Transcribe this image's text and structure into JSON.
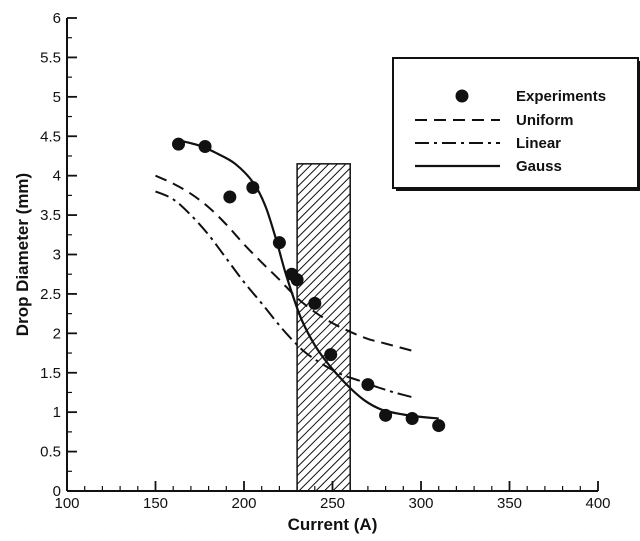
{
  "chart_data": {
    "type": "line",
    "title": "",
    "xlabel": "Current (A)",
    "ylabel": "Drop Diameter (mm)",
    "xlim": [
      100,
      400
    ],
    "ylim": [
      0,
      6
    ],
    "xticks": [
      100,
      150,
      200,
      250,
      300,
      350,
      400
    ],
    "yticks": [
      0,
      0.5,
      1,
      1.5,
      2,
      2.5,
      3,
      3.5,
      4,
      4.5,
      5,
      5.5,
      6
    ],
    "x_tick_labels": [
      "100",
      "150",
      "200",
      "250",
      "300",
      "350",
      "400"
    ],
    "y_tick_labels": [
      "0",
      "0.5",
      "1",
      "1.5",
      "2",
      "2.5",
      "3",
      "3.5",
      "4",
      "4.5",
      "5",
      "5.5",
      "6"
    ],
    "legend_position": "top-right",
    "shaded_region": {
      "x_range": [
        230,
        260
      ],
      "y_range": [
        0,
        4.15
      ],
      "pattern": "hatched"
    },
    "series": [
      {
        "name": "Experiments",
        "style": "markers",
        "x": [
          163,
          178,
          192,
          205,
          220,
          227,
          230,
          240,
          249,
          270,
          280,
          295,
          310
        ],
        "y": [
          4.4,
          4.37,
          3.73,
          3.85,
          3.15,
          2.75,
          2.68,
          2.38,
          1.73,
          1.35,
          0.96,
          0.92,
          0.83
        ]
      },
      {
        "name": "Uniform",
        "style": "dashed",
        "x": [
          150,
          160,
          170,
          180,
          190,
          200,
          210,
          220,
          230,
          240,
          250,
          260,
          270,
          280,
          295
        ],
        "y": [
          4.0,
          3.9,
          3.77,
          3.6,
          3.38,
          3.13,
          2.9,
          2.68,
          2.45,
          2.27,
          2.13,
          2.02,
          1.93,
          1.87,
          1.78
        ]
      },
      {
        "name": "Linear",
        "style": "dash-dot",
        "x": [
          150,
          160,
          170,
          180,
          190,
          200,
          210,
          220,
          228,
          235,
          245,
          255,
          265,
          275,
          285,
          297
        ],
        "y": [
          3.8,
          3.7,
          3.5,
          3.25,
          2.95,
          2.65,
          2.38,
          2.1,
          1.9,
          1.75,
          1.6,
          1.48,
          1.4,
          1.32,
          1.25,
          1.18
        ]
      },
      {
        "name": "Gauss",
        "style": "solid",
        "x": [
          163,
          175,
          185,
          195,
          205,
          212,
          218,
          223,
          228,
          233,
          240,
          248,
          258,
          268,
          278,
          290,
          300,
          310
        ],
        "y": [
          4.45,
          4.38,
          4.28,
          4.15,
          3.92,
          3.62,
          3.2,
          2.8,
          2.45,
          2.15,
          1.85,
          1.6,
          1.35,
          1.15,
          1.03,
          0.97,
          0.94,
          0.92
        ]
      }
    ]
  }
}
